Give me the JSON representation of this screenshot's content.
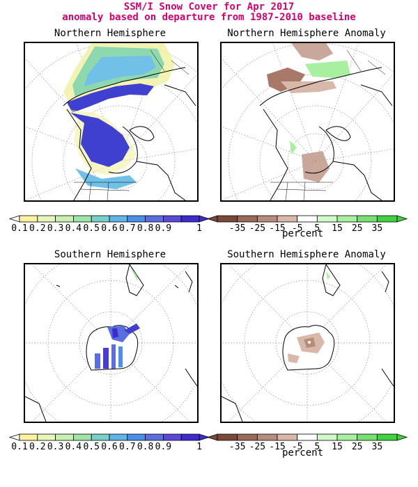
{
  "header": {
    "title_line1": "SSM/I Snow Cover for Apr 2017",
    "title_line2": "anomaly based on departure from 1987-2010 baseline"
  },
  "panels": {
    "nh": {
      "title": "Northern Hemisphere"
    },
    "nh_anom": {
      "title": "Northern Hemisphere Anomaly"
    },
    "sh": {
      "title": "Southern Hemisphere"
    },
    "sh_anom": {
      "title": "Southern Hemisphere Anomaly"
    }
  },
  "colorbars": {
    "cover": {
      "labels": [
        "0.1",
        "0.2",
        "0.3",
        "0.4",
        "0.5",
        "0.6",
        "0.7",
        "0.8",
        "0.9",
        "1"
      ],
      "colors": [
        "#fff2a0",
        "#e8f6b8",
        "#c8f0b0",
        "#a0e4a8",
        "#78d0c8",
        "#60b4e8",
        "#4a90e8",
        "#5a6ee0",
        "#5a48d8",
        "#3c2ccc"
      ]
    },
    "anomaly": {
      "labels": [
        "-35",
        "-25",
        "-15",
        "-5",
        "5",
        "15",
        "25",
        "35"
      ],
      "colors": [
        "#7a4a38",
        "#9a6a58",
        "#b88c7c",
        "#d8b8a8",
        "#ffffff",
        "#d0f8c8",
        "#a8f0a0",
        "#78e070",
        "#40d040"
      ],
      "units": "percent"
    }
  },
  "colors": {
    "title": "#d40070",
    "snow_high": "#4040d0",
    "snow_mid": "#70c0e8",
    "snow_low": "#f0f0a0",
    "anom_neg": "#c09888",
    "anom_pos": "#a8f0a0"
  }
}
